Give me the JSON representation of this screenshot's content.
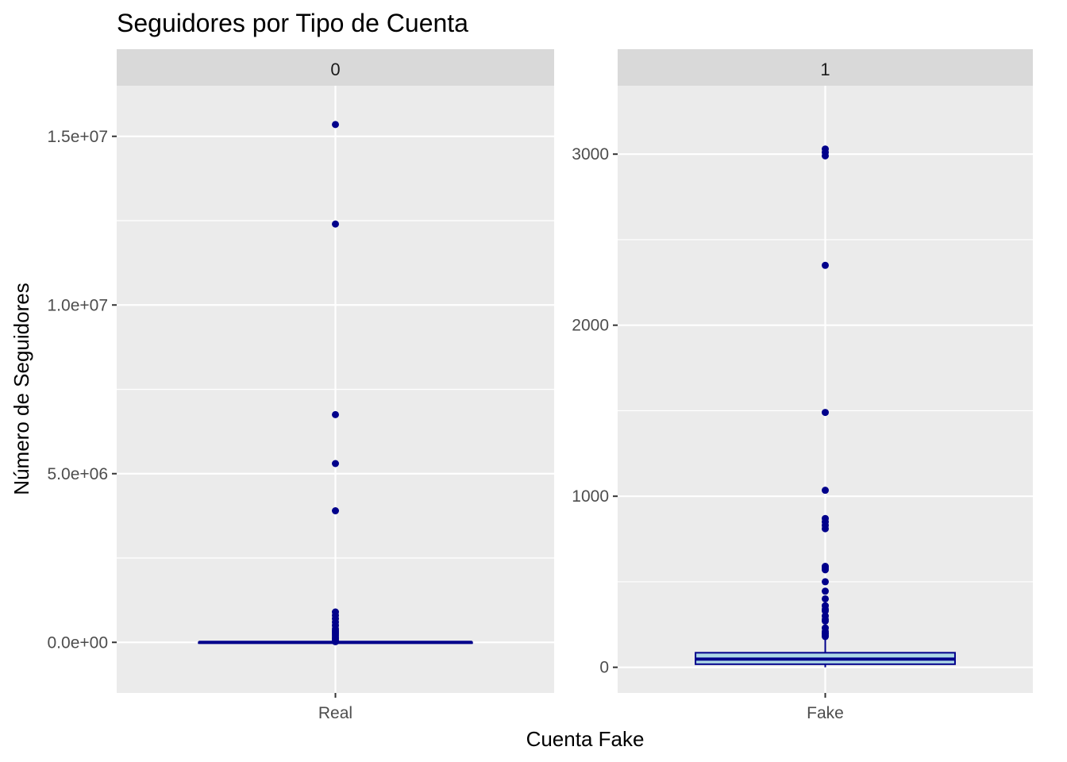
{
  "chart_data": {
    "type": "boxplot",
    "title": "Seguidores por Tipo de Cuenta",
    "xlabel": "Cuenta Fake",
    "ylabel": "Número de Seguidores",
    "grid": true,
    "facet_scales": "free_y",
    "colors": {
      "panel_bg": "#ebebeb",
      "strip_bg": "#d9d9d9",
      "box_fill": "#add8e6",
      "box_line": "#00008b",
      "outlier": "#00008b",
      "grid": "#ffffff"
    },
    "panels": [
      {
        "strip": "0",
        "category": "Real",
        "ylim": [
          -1500000,
          16500000
        ],
        "yticks": [
          0,
          5000000,
          10000000,
          15000000
        ],
        "ytick_labels": [
          "0.0e+00",
          "5.0e+06",
          "1.0e+07",
          "1.5e+07"
        ],
        "box": {
          "q1": 40,
          "median": 150,
          "q3": 700,
          "whisker_low": 0,
          "whisker_high": 1700
        },
        "outliers": [
          15350000,
          12400000,
          6750000,
          5300000,
          3900000,
          900000,
          800000,
          700000,
          600000,
          500000,
          400000,
          350000,
          300000,
          250000,
          200000,
          150000,
          100000,
          50000,
          20000
        ]
      },
      {
        "strip": "1",
        "category": "Fake",
        "ylim": [
          -150,
          3400
        ],
        "yticks": [
          0,
          1000,
          2000,
          3000
        ],
        "ytick_labels": [
          "0",
          "1000",
          "2000",
          "3000"
        ],
        "box": {
          "q1": 18,
          "median": 48,
          "q3": 85,
          "whisker_low": 0,
          "whisker_high": 165
        },
        "outliers": [
          3030,
          3010,
          2990,
          2350,
          1490,
          1035,
          870,
          850,
          830,
          810,
          590,
          580,
          570,
          500,
          445,
          400,
          360,
          340,
          330,
          300,
          280,
          270,
          230,
          210,
          200,
          195,
          185,
          180
        ]
      }
    ]
  }
}
